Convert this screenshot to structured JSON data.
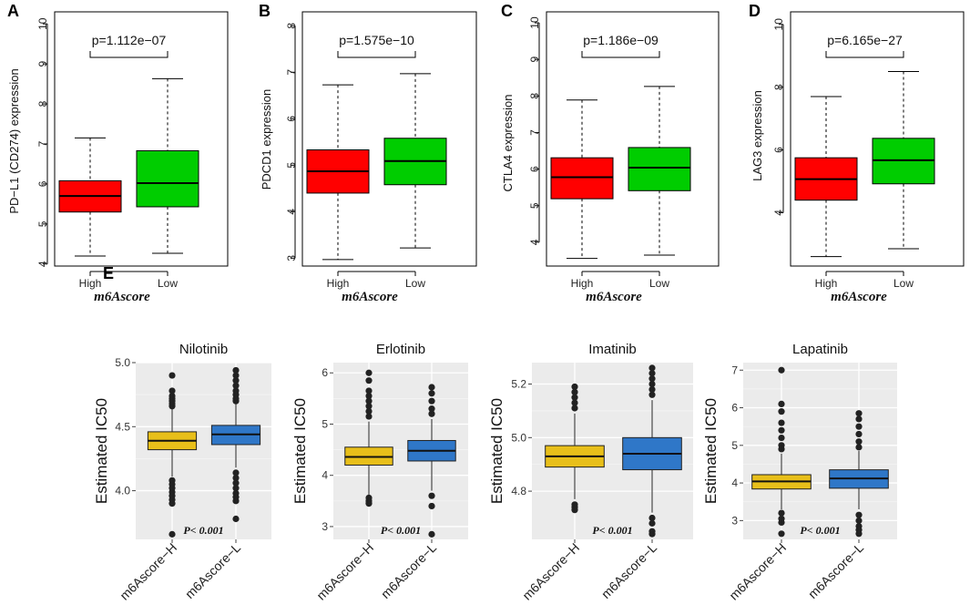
{
  "figure_label_e": "E",
  "chart_data": [
    {
      "panel": "A",
      "type": "boxplot",
      "ylabel": "PD−L1 (CD274) expression",
      "xlabel": "m6Ascore",
      "categories": [
        "High",
        "Low"
      ],
      "yticks": [
        4,
        5,
        6,
        7,
        8,
        9,
        10
      ],
      "ylim": [
        3.95,
        10.3
      ],
      "pvalue": "p=1.112e−07",
      "boxes": [
        {
          "name": "High",
          "color": "#ff0000",
          "min": 4.2,
          "q1": 5.3,
          "median": 5.7,
          "q3": 6.08,
          "max": 7.15
        },
        {
          "name": "Low",
          "color": "#00cd00",
          "min": 4.27,
          "q1": 5.43,
          "median": 6.02,
          "q3": 6.83,
          "max": 8.63
        }
      ]
    },
    {
      "panel": "B",
      "type": "boxplot",
      "ylabel": "PDCD1 expression",
      "xlabel": "m6Ascore",
      "categories": [
        "High",
        "Low"
      ],
      "yticks": [
        3,
        4,
        5,
        6,
        7,
        8
      ],
      "ylim": [
        2.83,
        8.3
      ],
      "pvalue": "p=1.575e−10",
      "boxes": [
        {
          "name": "High",
          "color": "#ff0000",
          "min": 2.97,
          "q1": 4.4,
          "median": 4.87,
          "q3": 5.33,
          "max": 6.73
        },
        {
          "name": "Low",
          "color": "#00cd00",
          "min": 3.22,
          "q1": 4.58,
          "median": 5.09,
          "q3": 5.58,
          "max": 6.97
        }
      ]
    },
    {
      "panel": "C",
      "type": "boxplot",
      "ylabel": "CTLA4 expression",
      "xlabel": "m6Ascore",
      "categories": [
        "High",
        "Low"
      ],
      "yticks": [
        4,
        5,
        6,
        7,
        8,
        9,
        10
      ],
      "ylim": [
        3.35,
        10.3
      ],
      "pvalue": "p=1.186e−09",
      "boxes": [
        {
          "name": "High",
          "color": "#ff0000",
          "min": 3.56,
          "q1": 5.19,
          "median": 5.78,
          "q3": 6.31,
          "max": 7.89
        },
        {
          "name": "Low",
          "color": "#00cd00",
          "min": 3.65,
          "q1": 5.41,
          "median": 6.04,
          "q3": 6.59,
          "max": 8.26
        }
      ]
    },
    {
      "panel": "D",
      "type": "boxplot",
      "ylabel": "LAG3 expression",
      "xlabel": "m6Ascore",
      "categories": [
        "High",
        "Low"
      ],
      "yticks": [
        4,
        6,
        8,
        10
      ],
      "ylim": [
        2.3,
        10.4
      ],
      "pvalue": "p=6.165e−27",
      "boxes": [
        {
          "name": "High",
          "color": "#ff0000",
          "min": 2.6,
          "q1": 4.4,
          "median": 5.07,
          "q3": 5.75,
          "max": 7.7
        },
        {
          "name": "Low",
          "color": "#00cd00",
          "min": 2.85,
          "q1": 4.92,
          "median": 5.67,
          "q3": 6.37,
          "max": 8.5
        }
      ]
    },
    {
      "panel": "E1",
      "type": "boxplot-ggplot",
      "title": "Nilotinib",
      "ylabel": "Estimated IC50",
      "categories": [
        "m6Ascore−H",
        "m6Ascore−L"
      ],
      "yticks": [
        "4.0",
        "4.5",
        "5.0"
      ],
      "ytick_values": [
        4.0,
        4.5,
        5.0
      ],
      "ylim": [
        3.62,
        5.0
      ],
      "annotation": "P< 0.001",
      "boxes": [
        {
          "name": "m6Ascore−H",
          "color": "#e8bf1a",
          "min": 4.11,
          "q1": 4.32,
          "median": 4.39,
          "q3": 4.46,
          "max": 4.64,
          "outliers": [
            4.9,
            4.78,
            4.74,
            4.72,
            4.7,
            4.68,
            4.66,
            4.08,
            4.05,
            4.02,
            3.99,
            3.96,
            3.93,
            3.9,
            3.66
          ]
        },
        {
          "name": "m6Ascore−L",
          "color": "#2f77c8",
          "min": 4.18,
          "q1": 4.36,
          "median": 4.44,
          "q3": 4.51,
          "max": 4.68,
          "outliers": [
            4.94,
            4.9,
            4.86,
            4.82,
            4.78,
            4.75,
            4.72,
            4.7,
            4.14,
            4.1,
            4.06,
            4.02,
            3.98,
            3.95,
            3.92,
            3.78
          ]
        }
      ]
    },
    {
      "panel": "E2",
      "type": "boxplot-ggplot",
      "title": "Erlotinib",
      "ylabel": "Estimated IC50",
      "categories": [
        "m6Ascore−H",
        "m6Ascore−L"
      ],
      "yticks": [
        "3",
        "4",
        "5",
        "6"
      ],
      "ytick_values": [
        3,
        4,
        5,
        6
      ],
      "ylim": [
        2.75,
        6.2
      ],
      "annotation": "P< 0.001",
      "boxes": [
        {
          "name": "m6Ascore−H",
          "color": "#e8bf1a",
          "min": 3.62,
          "q1": 4.2,
          "median": 4.36,
          "q3": 4.55,
          "max": 5.05,
          "outliers": [
            6.0,
            5.85,
            5.65,
            5.55,
            5.45,
            5.35,
            5.25,
            5.15,
            3.56,
            3.5,
            3.45
          ]
        },
        {
          "name": "m6Ascore−L",
          "color": "#2f77c8",
          "min": 3.7,
          "q1": 4.28,
          "median": 4.48,
          "q3": 4.68,
          "max": 5.1,
          "outliers": [
            5.72,
            5.6,
            5.45,
            5.3,
            5.2,
            3.6,
            3.4,
            2.85
          ]
        }
      ]
    },
    {
      "panel": "E3",
      "type": "boxplot-ggplot",
      "title": "Imatinib",
      "ylabel": "Estimated IC50",
      "categories": [
        "m6Ascore−H",
        "m6Ascore−L"
      ],
      "yticks": [
        "4.8",
        "5.0",
        "5.2"
      ],
      "ytick_values": [
        4.8,
        5.0,
        5.2
      ],
      "ylim": [
        4.62,
        5.28
      ],
      "annotation": "P< 0.001",
      "boxes": [
        {
          "name": "m6Ascore−H",
          "color": "#e8bf1a",
          "min": 4.77,
          "q1": 4.89,
          "median": 4.93,
          "q3": 4.97,
          "max": 5.09,
          "outliers": [
            5.19,
            5.17,
            5.15,
            5.13,
            5.11,
            4.75,
            4.74,
            4.73
          ]
        },
        {
          "name": "m6Ascore−L",
          "color": "#2f77c8",
          "min": 4.72,
          "q1": 4.88,
          "median": 4.94,
          "q3": 5.0,
          "max": 5.14,
          "outliers": [
            5.26,
            5.24,
            5.22,
            5.2,
            5.18,
            5.16,
            4.7,
            4.68,
            4.65,
            4.64
          ]
        }
      ]
    },
    {
      "panel": "E4",
      "type": "boxplot-ggplot",
      "title": "Lapatinib",
      "ylabel": "Estimated IC50",
      "categories": [
        "m6Ascore−H",
        "m6Ascore−L"
      ],
      "yticks": [
        "3",
        "4",
        "5",
        "6",
        "7"
      ],
      "ytick_values": [
        3,
        4,
        5,
        6,
        7
      ],
      "ylim": [
        2.5,
        7.2
      ],
      "annotation": "P< 0.001",
      "boxes": [
        {
          "name": "m6Ascore−H",
          "color": "#e8bf1a",
          "min": 3.3,
          "q1": 3.84,
          "median": 4.04,
          "q3": 4.22,
          "max": 4.78,
          "outliers": [
            7.0,
            6.1,
            5.9,
            5.6,
            5.4,
            5.2,
            5.0,
            4.9,
            3.2,
            3.05,
            2.95,
            2.65
          ]
        },
        {
          "name": "m6Ascore−L",
          "color": "#2f77c8",
          "min": 3.3,
          "q1": 3.86,
          "median": 4.12,
          "q3": 4.35,
          "max": 4.85,
          "outliers": [
            5.85,
            5.7,
            5.5,
            5.3,
            5.1,
            4.95,
            3.15,
            3.0,
            2.85,
            2.75,
            2.65
          ]
        }
      ]
    }
  ]
}
